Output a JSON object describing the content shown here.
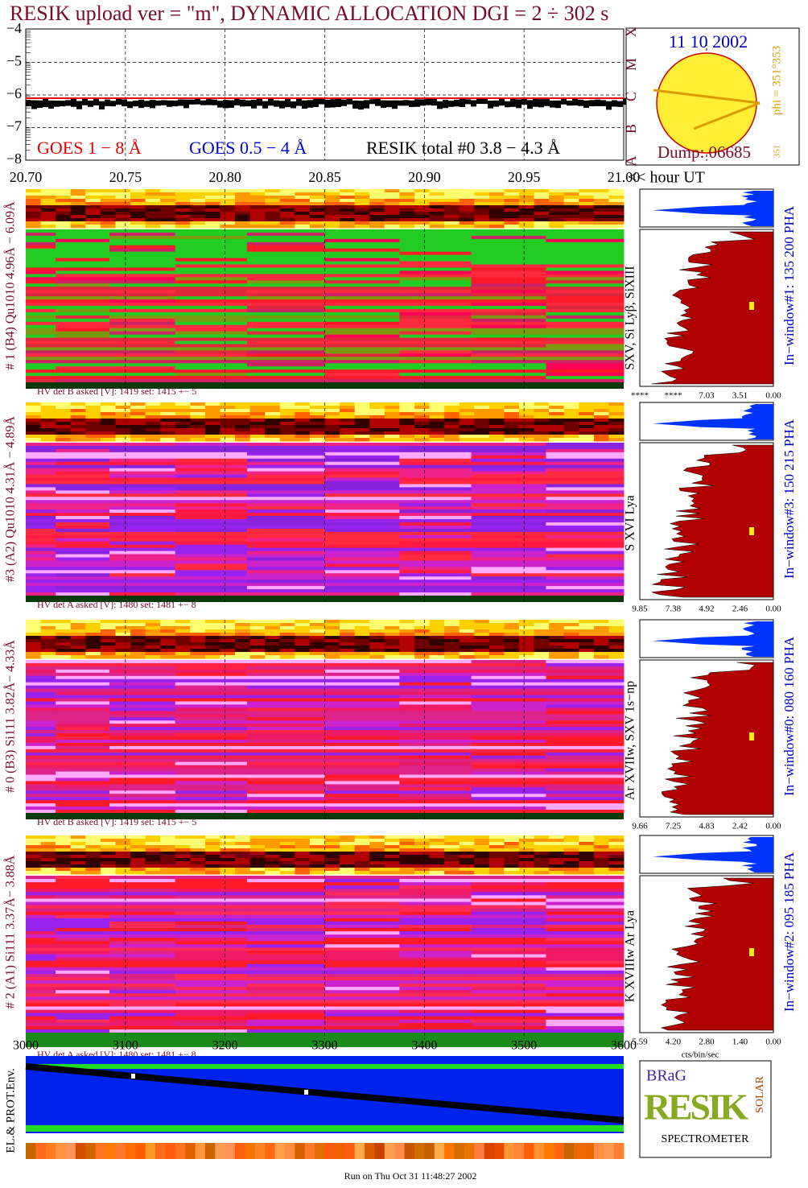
{
  "title": "RESIK upload ver = \"m\", DYNAMIC ALLOCATION  DGI =   2 ÷ 302 s",
  "goes_panel": {
    "yticks": [
      "−4",
      "−5",
      "−6",
      "−7",
      "−8"
    ],
    "xticks": [
      "20.70",
      "20.75",
      "20.80",
      "20.85",
      "20.90",
      "20.95",
      "21.00"
    ],
    "x_unit": "<< hour UT",
    "legend": [
      "GOES 1 − 8 Å",
      "GOES 0.5 − 4 Å",
      "RESIK total #0  3.8 − 4.3 Å"
    ],
    "class_letters": [
      "X",
      "M",
      "C",
      "B",
      "A"
    ],
    "date": "11 10 2002",
    "dump": "Dump: 06685",
    "phi": "phi = 351°353",
    "phi_small": "351"
  },
  "panels": [
    {
      "left_label": "# 1 (B4) Qu1010 4.96Å − 6.09Å",
      "side_label": "SXV, Si Lyβ, SiXIII",
      "window": "In−window#1:  135 200 PHA",
      "hv": "HV det B asked [V]:  1419 set:  1415  +−   5",
      "hist_ticks": [
        "****",
        "****",
        "7.03",
        "3.51",
        "0.00"
      ]
    },
    {
      "left_label": "#3 (A2) Qu1010  4.31Å − 4.89Å",
      "side_label": "S XVI Lya",
      "window": "In−window#3:  150 215 PHA",
      "hv": "HV det A asked [V]:  1480 set:  1481  +−   8",
      "hist_ticks": [
        "9.85",
        "7.38",
        "4.92",
        "2.46",
        "0.00"
      ]
    },
    {
      "left_label": "# 0 (B3) Si111  3.82Å− 4.33Å",
      "side_label": "Ar XVIIw,  SXV 1s−np",
      "window": "In−window#0:  080 160 PHA",
      "hv": "HV det B asked [V]:  1419 set:  1415  +−   5",
      "hist_ticks": [
        "9.66",
        "7.25",
        "4.83",
        "2.42",
        "0.00"
      ]
    },
    {
      "left_label": "# 2 (A1) Si111  3.37Å− 3.88Å",
      "side_label": "K XVIIIw  Ar Lya",
      "window": "In−window#2:  095 185 PHA",
      "hv": "HV det A asked [V]:  1480 set:  1481  +−   8",
      "hist_ticks": [
        "5.59",
        "4.20",
        "2.80",
        "1.40",
        "0.00"
      ]
    }
  ],
  "bottom": {
    "xticks": [
      "3000",
      "3100",
      "3200",
      "3300",
      "3400",
      "3500",
      "3600"
    ],
    "hist_unit": "cts/bin/sec",
    "env_label": "EL.& PROT.Env."
  },
  "logo": {
    "top": "BRaG",
    "main": "RESIK",
    "side": "SOLAR",
    "bottom": "SPECTROMETER"
  },
  "footer": "Run on Thu Oct 31 11:48:27 2002"
}
